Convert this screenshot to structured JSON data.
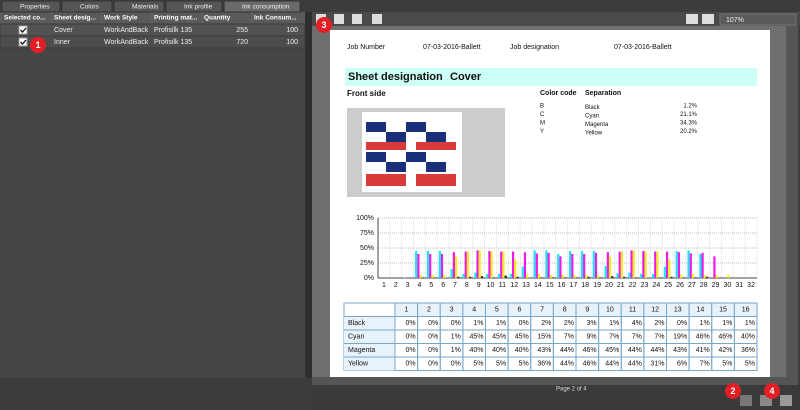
{
  "tabs": [
    "Properties",
    "Colors",
    "Materials",
    "Ink profile",
    "Ink consumption"
  ],
  "job_table": {
    "headers": [
      "Selected co...",
      "Sheet desig...",
      "Work Style",
      "Printing mat...",
      "Quantity",
      "Ink Consum..."
    ],
    "rows": [
      {
        "selected": true,
        "sheet": "Cover",
        "work_style": "WorkAndBack",
        "material": "Profisilk 135",
        "quantity": "255",
        "ink": "100"
      },
      {
        "selected": true,
        "sheet": "Inner",
        "work_style": "WorkAndBack",
        "material": "Profisilk 135",
        "quantity": "720",
        "ink": "100"
      }
    ]
  },
  "markers": [
    "1",
    "2",
    "3",
    "4"
  ],
  "viewer": {
    "zoom": "107%",
    "status": "Page 2 of 4"
  },
  "report": {
    "job_number_label": "Job Number",
    "job_number": "07-03-2016-Ballett",
    "job_designation_label": "Job designation",
    "job_designation": "07-03-2016-Ballett",
    "sheet_label": "Sheet designation",
    "sheet_value": "Cover",
    "side": "Front side",
    "color_headers": [
      "Color code",
      "Separation"
    ],
    "colors": [
      {
        "code": "B",
        "name": "Black",
        "coverage": "1.2%"
      },
      {
        "code": "C",
        "name": "Cyan",
        "coverage": "21.1%"
      },
      {
        "code": "M",
        "name": "Magenta",
        "coverage": "34.3%"
      },
      {
        "code": "Y",
        "name": "Yellow",
        "coverage": "20.2%"
      }
    ],
    "chart": {
      "type": "bar",
      "ylim": [
        0,
        100
      ],
      "yticks": [
        {
          "value": 0,
          "label": "0%"
        },
        {
          "value": 25,
          "label": "25%"
        },
        {
          "value": 50,
          "label": "50%"
        },
        {
          "value": 75,
          "label": "75%"
        },
        {
          "value": 100,
          "label": "100%"
        }
      ],
      "xlim": [
        0.5,
        32.5
      ],
      "xticks": [
        1,
        2,
        3,
        4,
        5,
        6,
        7,
        8,
        9,
        10,
        11,
        12,
        13,
        14,
        15,
        16,
        17,
        18,
        19,
        20,
        21,
        22,
        23,
        24,
        25,
        26,
        27,
        28,
        29,
        30,
        31,
        32
      ],
      "grid": true,
      "series": [
        {
          "color": "#19e6f0",
          "values": [
            0,
            0,
            1,
            45,
            45,
            45,
            15,
            7,
            9,
            7,
            7,
            7,
            19,
            46,
            46,
            40,
            45,
            45,
            45,
            20,
            8,
            9,
            7,
            7,
            19,
            45,
            46,
            40,
            0,
            0,
            0,
            0
          ]
        },
        {
          "color": "#f019e6",
          "values": [
            0,
            0,
            1,
            40,
            40,
            40,
            43,
            44,
            46,
            45,
            44,
            44,
            43,
            41,
            42,
            36,
            40,
            40,
            42,
            43,
            44,
            46,
            45,
            44,
            44,
            43,
            41,
            42,
            36,
            0,
            0,
            0
          ]
        },
        {
          "color": "#f0f019",
          "values": [
            0,
            0,
            0,
            5,
            5,
            5,
            36,
            44,
            46,
            44,
            44,
            31,
            6,
            7,
            5,
            5,
            5,
            5,
            5,
            36,
            44,
            46,
            44,
            44,
            31,
            6,
            7,
            5,
            5,
            5,
            0,
            0
          ]
        },
        {
          "color": "#222222",
          "values": [
            0,
            0,
            0,
            1,
            1,
            0,
            2,
            2,
            3,
            1,
            4,
            2,
            0,
            1,
            1,
            1,
            1,
            2,
            1,
            3,
            2,
            1,
            0,
            1,
            2,
            1,
            1,
            2,
            0,
            0,
            0,
            0
          ]
        }
      ]
    },
    "table": {
      "columns": [
        "1",
        "2",
        "3",
        "4",
        "5",
        "6",
        "7",
        "8",
        "9",
        "10",
        "11",
        "12",
        "13",
        "14",
        "15",
        "16"
      ],
      "rows": [
        {
          "name": "Black",
          "cells": [
            "0%",
            "0%",
            "0%",
            "1%",
            "1%",
            "0%",
            "2%",
            "2%",
            "3%",
            "1%",
            "4%",
            "2%",
            "0%",
            "1%",
            "1%",
            "1%"
          ]
        },
        {
          "name": "Cyan",
          "cells": [
            "0%",
            "0%",
            "1%",
            "45%",
            "45%",
            "45%",
            "15%",
            "7%",
            "9%",
            "7%",
            "7%",
            "7%",
            "19%",
            "46%",
            "46%",
            "40%"
          ]
        },
        {
          "name": "Magenta",
          "cells": [
            "0%",
            "0%",
            "1%",
            "40%",
            "40%",
            "40%",
            "43%",
            "44%",
            "46%",
            "45%",
            "44%",
            "44%",
            "43%",
            "41%",
            "42%",
            "36%"
          ]
        },
        {
          "name": "Yellow",
          "cells": [
            "0%",
            "0%",
            "0%",
            "5%",
            "5%",
            "5%",
            "36%",
            "44%",
            "46%",
            "44%",
            "44%",
            "31%",
            "6%",
            "7%",
            "5%",
            "5%"
          ]
        }
      ]
    }
  }
}
